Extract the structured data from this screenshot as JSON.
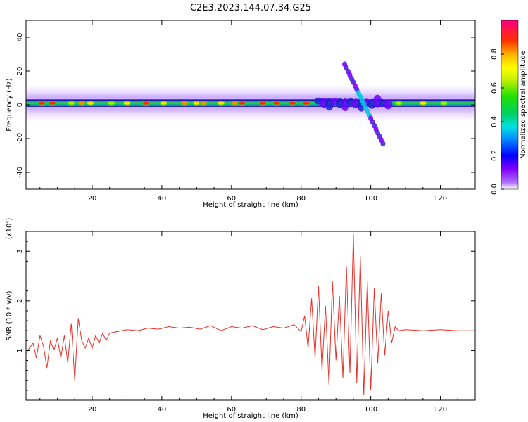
{
  "title": "C2E3.2023.144.07.34.G25",
  "chart_data": [
    {
      "type": "heatmap",
      "xlabel": "Height of straight line (km)",
      "ylabel": "Frequency (Hz)",
      "xlim": [
        1,
        130
      ],
      "ylim": [
        -50,
        50
      ],
      "xticks": [
        20,
        40,
        60,
        80,
        100,
        120
      ],
      "yticks": [
        -40,
        -20,
        0,
        20,
        40
      ],
      "colorbar": {
        "label": "Normalized spectral amplitude",
        "range": [
          0,
          1
        ],
        "ticks": [
          0.0,
          0.2,
          0.4,
          0.6,
          0.8
        ]
      },
      "band": {
        "center_hz": 1,
        "half_width_hz": 2,
        "disturbance_region_km": [
          85,
          105
        ]
      },
      "streak": {
        "start": {
          "x": 92.5,
          "y": 24
        },
        "end": {
          "x": 103.5,
          "y": -23
        }
      },
      "peaks": [
        {
          "x": 5.5,
          "amp": 0.95
        },
        {
          "x": 8.5,
          "amp": 0.9
        },
        {
          "x": 14,
          "amp": 0.6
        },
        {
          "x": 17,
          "amp": 0.85
        },
        {
          "x": 19.5,
          "amp": 0.7
        },
        {
          "x": 25.5,
          "amp": 0.65
        },
        {
          "x": 30,
          "amp": 0.7
        },
        {
          "x": 35.5,
          "amp": 0.95
        },
        {
          "x": 40.5,
          "amp": 0.7
        },
        {
          "x": 46.5,
          "amp": 0.85
        },
        {
          "x": 50,
          "amp": 0.7
        },
        {
          "x": 52,
          "amp": 0.8
        },
        {
          "x": 57,
          "amp": 0.75
        },
        {
          "x": 61,
          "amp": 0.85
        },
        {
          "x": 63,
          "amp": 0.9
        },
        {
          "x": 69,
          "amp": 0.9
        },
        {
          "x": 73,
          "amp": 0.95
        },
        {
          "x": 77.5,
          "amp": 0.9
        },
        {
          "x": 81.5,
          "amp": 0.95
        },
        {
          "x": 108,
          "amp": 0.6
        },
        {
          "x": 115,
          "amp": 0.7
        },
        {
          "x": 121,
          "amp": 0.6
        }
      ]
    },
    {
      "type": "line",
      "xlabel": "Height of straight line (km)",
      "ylabel": "SNR (10 * v/v)",
      "scale_label": "(x10⁴)",
      "xlim": [
        1,
        130
      ],
      "ylim": [
        0,
        3.4
      ],
      "xticks": [
        20,
        40,
        60,
        80,
        100,
        120
      ],
      "yticks": [
        1,
        2,
        3
      ],
      "series": [
        {
          "color": "#e8302a",
          "x": [
            1,
            2,
            3,
            4,
            5,
            6,
            7,
            8,
            9,
            10,
            11,
            12,
            13,
            14,
            15,
            16,
            17,
            18,
            19,
            20,
            21,
            22,
            23,
            24,
            25,
            27,
            30,
            33,
            36,
            39,
            42,
            45,
            48,
            51,
            54,
            57,
            60,
            63,
            66,
            69,
            72,
            75,
            78,
            80,
            81,
            82,
            83,
            84,
            85,
            86,
            87,
            88,
            89,
            90,
            91,
            92,
            93,
            94,
            95,
            96,
            97,
            98,
            99,
            100,
            101,
            102,
            103,
            104,
            105,
            106,
            107,
            108,
            110,
            115,
            120,
            125,
            130
          ],
          "y": [
            0.95,
            1.05,
            1.15,
            0.85,
            1.3,
            1.1,
            0.65,
            1.2,
            1.0,
            1.25,
            0.85,
            1.3,
            0.75,
            1.55,
            0.4,
            1.65,
            1.2,
            1.05,
            1.25,
            1.05,
            1.3,
            1.15,
            1.35,
            1.2,
            1.35,
            1.38,
            1.42,
            1.4,
            1.45,
            1.43,
            1.48,
            1.45,
            1.47,
            1.43,
            1.5,
            1.4,
            1.48,
            1.45,
            1.5,
            1.42,
            1.48,
            1.45,
            1.52,
            1.38,
            1.7,
            1.05,
            2.05,
            0.85,
            2.3,
            0.6,
            1.9,
            0.3,
            2.4,
            0.8,
            2.1,
            0.45,
            2.7,
            0.55,
            3.35,
            0.35,
            2.9,
            0.1,
            2.4,
            0.2,
            2.25,
            0.75,
            2.15,
            0.9,
            1.8,
            1.15,
            1.48,
            1.4,
            1.42,
            1.4,
            1.42,
            1.4,
            1.4
          ]
        }
      ]
    }
  ]
}
